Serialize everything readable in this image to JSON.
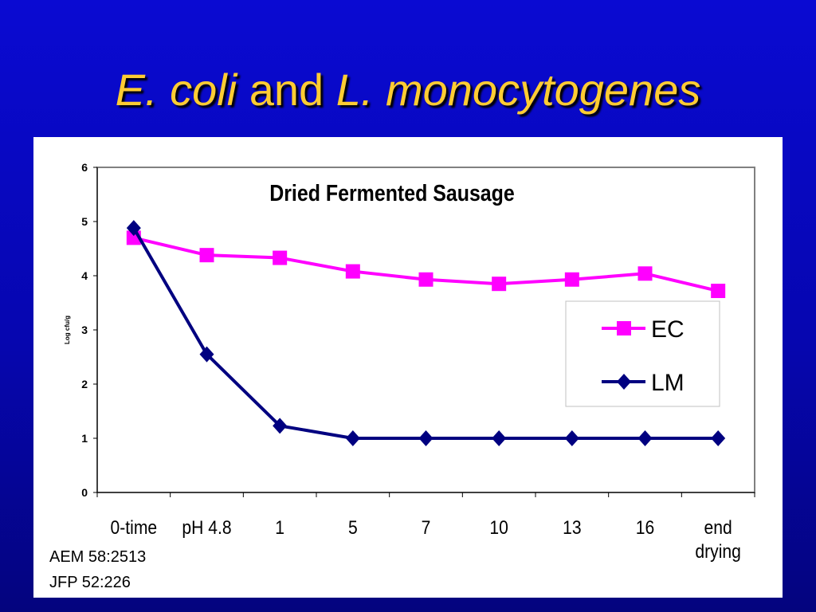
{
  "slide": {
    "title_part1": "E. coli",
    "title_part2": " and ",
    "title_part3": "L. monocytogenes"
  },
  "references": [
    "AEM 58:2513",
    "JFP 52:226"
  ],
  "chart_data": {
    "type": "line",
    "title": "Dried Fermented Sausage",
    "ylabel": "Log cfu/g",
    "xlabel": "",
    "categories": [
      "0-time",
      "pH 4.8",
      "1",
      "5",
      "7",
      "10",
      "13",
      "16",
      "end drying"
    ],
    "ylim": [
      0,
      6
    ],
    "yticks": [
      0,
      1,
      2,
      3,
      4,
      5,
      6
    ],
    "legend_position": "right",
    "grid": false,
    "series": [
      {
        "name": "EC",
        "color": "#ff00ff",
        "marker": "square",
        "values": [
          4.7,
          4.38,
          4.33,
          4.08,
          3.93,
          3.85,
          3.93,
          4.04,
          3.72
        ]
      },
      {
        "name": "LM",
        "color": "#000080",
        "marker": "diamond",
        "values": [
          4.88,
          2.55,
          1.23,
          1.0,
          1.0,
          1.0,
          1.0,
          1.0,
          1.0
        ]
      }
    ]
  }
}
